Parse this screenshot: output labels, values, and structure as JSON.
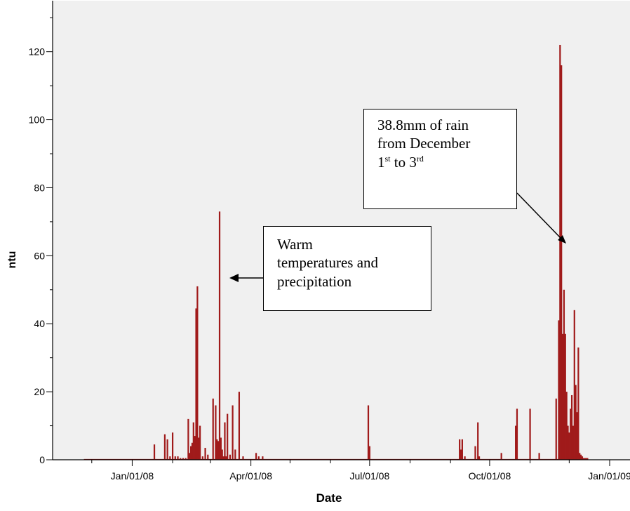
{
  "chart_data": {
    "type": "bar",
    "xlabel": "Date",
    "ylabel": "ntu",
    "ylim": [
      0,
      135
    ],
    "yticks": [
      0,
      20,
      40,
      60,
      80,
      100,
      120
    ],
    "xlim": [
      "2007-11-01",
      "2009-01-01"
    ],
    "xticks": [
      {
        "date": "2008-01-01",
        "label": "Jan/01/08"
      },
      {
        "date": "2008-04-01",
        "label": "Apr/01/08"
      },
      {
        "date": "2008-07-01",
        "label": "Jul/01/08"
      },
      {
        "date": "2008-10-01",
        "label": "Oct/01/08"
      },
      {
        "date": "2009-01-01",
        "label": "Jan/01/09"
      }
    ],
    "bar_color": "#a01a1a",
    "background_color": "#f0f0f0",
    "grid": false,
    "x": [
      "2008-01-18",
      "2008-01-26",
      "2008-01-28",
      "2008-01-30",
      "2008-02-01",
      "2008-02-03",
      "2008-02-05",
      "2008-02-07",
      "2008-02-09",
      "2008-02-11",
      "2008-02-13",
      "2008-02-14",
      "2008-02-15",
      "2008-02-16",
      "2008-02-17",
      "2008-02-18",
      "2008-02-19",
      "2008-02-20",
      "2008-02-21",
      "2008-02-22",
      "2008-02-24",
      "2008-02-26",
      "2008-02-28",
      "2008-03-03",
      "2008-03-05",
      "2008-03-06",
      "2008-03-07",
      "2008-03-08",
      "2008-03-09",
      "2008-03-10",
      "2008-03-11",
      "2008-03-12",
      "2008-03-13",
      "2008-03-14",
      "2008-03-16",
      "2008-03-18",
      "2008-03-20",
      "2008-03-23",
      "2008-03-26",
      "2008-04-05",
      "2008-04-07",
      "2008-04-10",
      "2008-06-30",
      "2008-07-01",
      "2008-09-08",
      "2008-09-09",
      "2008-09-10",
      "2008-09-12",
      "2008-09-20",
      "2008-09-22",
      "2008-09-23",
      "2008-10-10",
      "2008-10-21",
      "2008-10-22",
      "2008-11-01",
      "2008-11-08",
      "2008-11-21",
      "2008-11-23",
      "2008-11-24",
      "2008-11-25",
      "2008-11-26",
      "2008-11-27",
      "2008-11-28",
      "2008-11-29",
      "2008-11-30",
      "2008-12-01",
      "2008-12-02",
      "2008-12-03",
      "2008-12-04",
      "2008-12-05",
      "2008-12-06",
      "2008-12-07",
      "2008-12-08",
      "2008-12-09",
      "2008-12-10",
      "2008-12-11",
      "2008-12-12",
      "2008-12-13",
      "2008-12-14",
      "2008-12-15"
    ],
    "values": [
      4.5,
      7.5,
      6,
      1,
      8,
      1,
      1,
      0.5,
      0.5,
      0.5,
      12,
      2,
      4,
      5,
      11,
      7,
      44.5,
      51,
      6.5,
      10,
      1,
      3.5,
      1.5,
      18,
      16,
      6,
      5.5,
      73,
      6.5,
      3,
      1,
      11,
      1,
      13.5,
      1.5,
      16,
      3,
      20,
      1,
      2,
      1,
      1,
      16,
      4,
      6,
      3,
      6,
      1,
      4,
      11,
      1,
      2,
      10,
      15,
      15,
      2,
      18,
      41,
      122,
      116,
      37,
      50,
      37,
      20,
      10,
      8,
      15,
      19,
      10,
      44,
      22,
      14,
      33,
      2,
      1.5,
      1,
      0.5,
      0.5,
      0.5,
      0.5
    ]
  },
  "callouts": {
    "rain": {
      "line1": "38.8mm of rain",
      "line2": "from December",
      "day1": "1",
      "sup1": "st",
      "mid": " to ",
      "day2": "3",
      "sup2": "rd"
    },
    "warm": {
      "line1": "Warm",
      "line2": "temperatures and",
      "line3": "precipitation"
    }
  }
}
